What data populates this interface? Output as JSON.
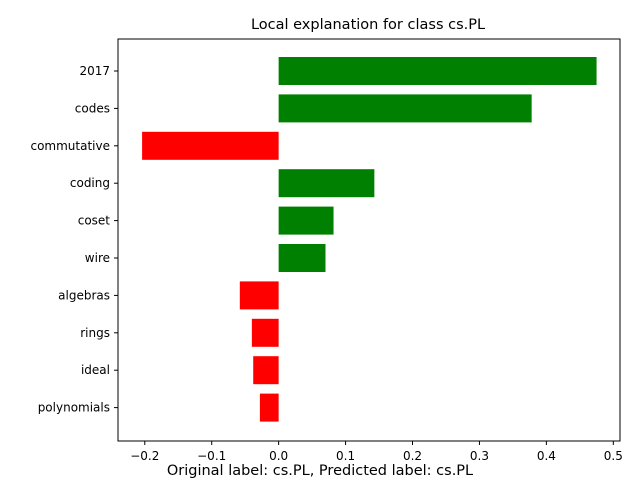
{
  "chart_data": {
    "type": "bar",
    "orientation": "horizontal",
    "title": "Local explanation for class cs.PL",
    "caption": "Original label: cs.PL, Predicted label: cs.PL",
    "categories": [
      "2017",
      "codes",
      "commutative",
      "coding",
      "coset",
      "wire",
      "algebras",
      "rings",
      "ideal",
      "polynomials"
    ],
    "values": [
      0.475,
      0.378,
      -0.204,
      0.143,
      0.082,
      0.07,
      -0.058,
      -0.04,
      -0.038,
      -0.028
    ],
    "xlim": [
      -0.24,
      0.51
    ],
    "xticks": [
      -0.2,
      -0.1,
      0.0,
      0.1,
      0.2,
      0.3,
      0.4,
      0.5
    ],
    "xtick_labels": [
      "−0.2",
      "−0.1",
      "0.0",
      "0.1",
      "0.2",
      "0.3",
      "0.4",
      "0.5"
    ],
    "colors": {
      "positive": "#008000",
      "negative": "#ff0000"
    },
    "grid": false,
    "legend": "none"
  }
}
